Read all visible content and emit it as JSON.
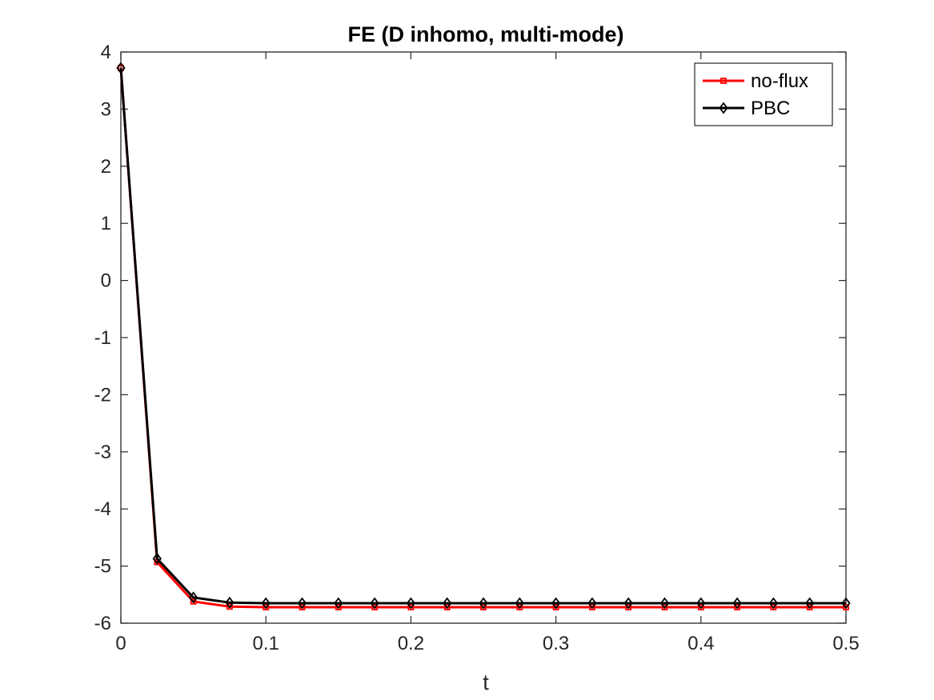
{
  "chart_data": {
    "type": "line",
    "title": "FE (D inhomo, multi-mode)",
    "xlabel": "t",
    "ylabel": "",
    "xlim": [
      0,
      0.5
    ],
    "ylim": [
      -6,
      4
    ],
    "xticks": [
      "0",
      "0.1",
      "0.2",
      "0.3",
      "0.4",
      "0.5"
    ],
    "yticks": [
      "-6",
      "-5",
      "-4",
      "-3",
      "-2",
      "-1",
      "0",
      "1",
      "2",
      "3",
      "4"
    ],
    "x": [
      0,
      0.025,
      0.05,
      0.075,
      0.1,
      0.125,
      0.15,
      0.175,
      0.2,
      0.225,
      0.25,
      0.275,
      0.3,
      0.325,
      0.35,
      0.375,
      0.4,
      0.425,
      0.45,
      0.475,
      0.5
    ],
    "legend_position": "top-right",
    "grid": false,
    "series": [
      {
        "name": "no-flux",
        "color": "#ff0000",
        "marker": "square",
        "values": [
          3.72,
          -4.93,
          -5.62,
          -5.71,
          -5.72,
          -5.72,
          -5.72,
          -5.72,
          -5.72,
          -5.72,
          -5.72,
          -5.72,
          -5.72,
          -5.72,
          -5.72,
          -5.72,
          -5.72,
          -5.72,
          -5.72,
          -5.72,
          -5.72
        ]
      },
      {
        "name": "PBC",
        "color": "#000000",
        "marker": "diamond",
        "values": [
          3.72,
          -4.87,
          -5.55,
          -5.64,
          -5.65,
          -5.65,
          -5.65,
          -5.65,
          -5.65,
          -5.65,
          -5.65,
          -5.65,
          -5.65,
          -5.65,
          -5.65,
          -5.65,
          -5.65,
          -5.65,
          -5.65,
          -5.65,
          -5.65
        ]
      }
    ]
  }
}
